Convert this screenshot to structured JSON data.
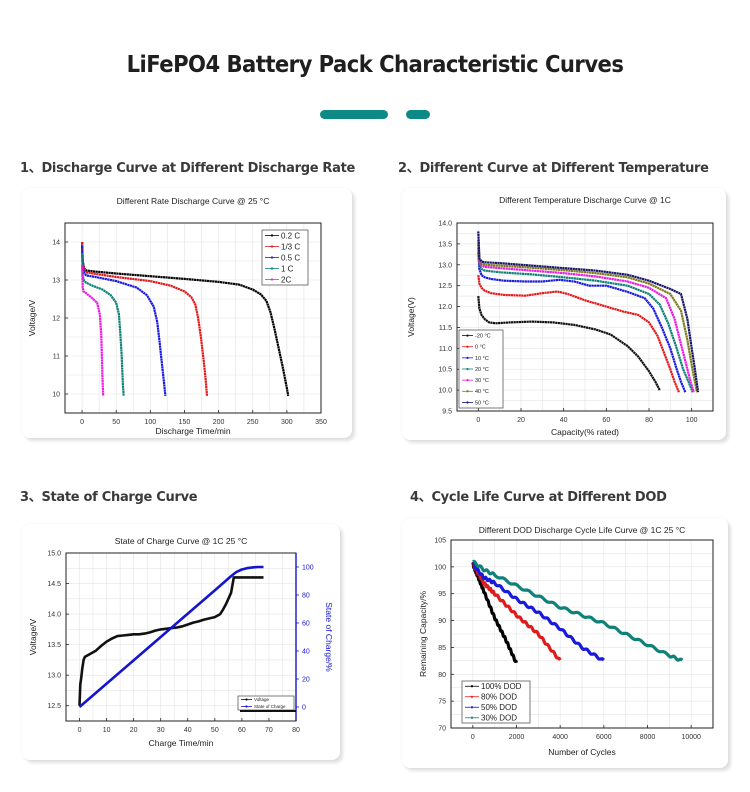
{
  "page": {
    "title": "LiFePO4 Battery Pack Characteristic Curves",
    "accent_color": "#0e8a86"
  },
  "sections": [
    {
      "label": "1、Discharge Curve at Different Discharge Rate"
    },
    {
      "label": "2、Different Curve at Different Temperature"
    },
    {
      "label": "3、State of Charge Curve"
    },
    {
      "label": "4、Cycle Life Curve at Different DOD"
    }
  ],
  "chart_data": [
    {
      "type": "line",
      "title": "Different Rate Discharge Curve @ 25 °C",
      "xlabel": "Discharge Time/min",
      "ylabel": "Voltage/V",
      "xlim": [
        -25,
        350
      ],
      "ylim": [
        9.5,
        14.5
      ],
      "xticks": [
        0,
        50,
        100,
        150,
        200,
        250,
        300,
        350
      ],
      "yticks": [
        10,
        11,
        12,
        13,
        14
      ],
      "grid": true,
      "legend_position": "top-right",
      "series": [
        {
          "name": "0.2 C",
          "color": "#000000",
          "x": [
            0,
            1,
            3,
            6,
            20,
            50,
            100,
            150,
            200,
            230,
            250,
            262,
            270,
            276,
            282,
            288,
            294,
            300,
            302
          ],
          "y": [
            14.0,
            13.5,
            13.3,
            13.25,
            13.22,
            13.17,
            13.1,
            13.03,
            12.95,
            12.88,
            12.75,
            12.62,
            12.45,
            12.15,
            11.7,
            11.2,
            10.7,
            10.15,
            9.95
          ]
        },
        {
          "name": "1/3 C",
          "color": "#e01b1b",
          "x": [
            0,
            1,
            3,
            6,
            20,
            50,
            100,
            130,
            150,
            160,
            166,
            170,
            174,
            178,
            181,
            183
          ],
          "y": [
            14.0,
            13.45,
            13.25,
            13.2,
            13.16,
            13.08,
            12.97,
            12.85,
            12.7,
            12.55,
            12.35,
            12.0,
            11.5,
            10.9,
            10.4,
            9.95
          ]
        },
        {
          "name": "0.5 C",
          "color": "#1a1adb",
          "x": [
            0,
            1,
            3,
            6,
            20,
            50,
            80,
            95,
            105,
            110,
            114,
            117,
            120,
            122
          ],
          "y": [
            13.9,
            13.35,
            13.18,
            13.12,
            13.08,
            12.97,
            12.8,
            12.6,
            12.3,
            11.9,
            11.3,
            10.8,
            10.3,
            9.95
          ]
        },
        {
          "name": "1 C",
          "color": "#0e8278",
          "x": [
            0,
            1,
            3,
            6,
            15,
            30,
            42,
            50,
            54,
            56,
            58,
            59,
            60,
            61
          ],
          "y": [
            13.7,
            13.1,
            12.98,
            12.93,
            12.85,
            12.75,
            12.6,
            12.4,
            12.1,
            11.6,
            11.0,
            10.6,
            10.2,
            9.95
          ]
        },
        {
          "name": "2C",
          "color": "#e81ee0",
          "x": [
            0,
            1,
            2,
            4,
            8,
            15,
            22,
            26,
            28,
            29,
            30,
            31
          ],
          "y": [
            13.4,
            12.8,
            12.7,
            12.68,
            12.62,
            12.52,
            12.4,
            12.1,
            11.6,
            11.0,
            10.4,
            9.95
          ]
        }
      ]
    },
    {
      "type": "line",
      "title": "Different Temperature Discharge Curve @ 1C",
      "xlabel": "Capacity(% rated)",
      "ylabel": "Voltage(V)",
      "xlim": [
        -10,
        110
      ],
      "ylim": [
        9.5,
        14.0
      ],
      "xticks": [
        0,
        20,
        40,
        60,
        80,
        100
      ],
      "yticks": [
        9.5,
        10.0,
        10.5,
        11.0,
        11.5,
        12.0,
        12.5,
        13.0,
        13.5,
        14.0
      ],
      "grid": true,
      "legend_position": "bottom-left",
      "series": [
        {
          "name": "-20 °C",
          "color": "#111111",
          "x": [
            0,
            0.5,
            1.5,
            3,
            5,
            8,
            15,
            25,
            35,
            45,
            55,
            62,
            70,
            75,
            80,
            83,
            85
          ],
          "y": [
            12.25,
            11.95,
            11.8,
            11.7,
            11.62,
            11.6,
            11.62,
            11.64,
            11.62,
            11.56,
            11.45,
            11.33,
            11.05,
            10.8,
            10.45,
            10.2,
            10.0
          ]
        },
        {
          "name": "0 °C",
          "color": "#e01b1b",
          "x": [
            0,
            0.5,
            1.5,
            3,
            6,
            12,
            22,
            30,
            37,
            42,
            50,
            60,
            68,
            75,
            80,
            84,
            87,
            90,
            92,
            94
          ],
          "y": [
            12.75,
            12.55,
            12.45,
            12.38,
            12.32,
            12.28,
            12.26,
            12.32,
            12.36,
            12.3,
            12.15,
            12.0,
            11.88,
            11.8,
            11.62,
            11.3,
            10.9,
            10.5,
            10.2,
            9.95
          ]
        },
        {
          "name": "10 °C",
          "color": "#1a1adb",
          "x": [
            0,
            0.5,
            1.5,
            3,
            6,
            12,
            22,
            30,
            38,
            45,
            52,
            60,
            70,
            78,
            82,
            86,
            90,
            93,
            95,
            97
          ],
          "y": [
            13.3,
            12.9,
            12.75,
            12.7,
            12.66,
            12.62,
            12.6,
            12.6,
            12.64,
            12.6,
            12.5,
            12.5,
            12.35,
            12.2,
            11.95,
            11.5,
            11.0,
            10.5,
            10.2,
            9.95
          ]
        },
        {
          "name": "20 °C",
          "color": "#0e8278",
          "x": [
            0,
            0.5,
            1.5,
            3,
            10,
            25,
            40,
            55,
            70,
            80,
            85,
            89,
            93,
            96,
            98.5,
            100.5
          ],
          "y": [
            13.4,
            13.0,
            12.9,
            12.86,
            12.82,
            12.77,
            12.7,
            12.62,
            12.5,
            12.3,
            12.05,
            11.6,
            11.0,
            10.5,
            10.2,
            9.95
          ]
        },
        {
          "name": "30 °C",
          "color": "#e81ee0",
          "x": [
            0,
            0.5,
            1.5,
            3,
            10,
            25,
            40,
            55,
            70,
            80,
            88,
            92,
            95,
            97.5,
            99.5,
            101
          ],
          "y": [
            13.5,
            13.05,
            12.98,
            12.95,
            12.92,
            12.86,
            12.8,
            12.72,
            12.6,
            12.45,
            12.2,
            11.7,
            11.1,
            10.6,
            10.2,
            9.95
          ]
        },
        {
          "name": "40 °C",
          "color": "#7d7a1a",
          "x": [
            0,
            0.5,
            1.5,
            3,
            10,
            25,
            40,
            55,
            70,
            80,
            90,
            95,
            98,
            100,
            101.5,
            102.5
          ],
          "y": [
            13.6,
            13.1,
            13.03,
            13.0,
            12.98,
            12.93,
            12.87,
            12.8,
            12.7,
            12.55,
            12.3,
            11.9,
            11.2,
            10.6,
            10.2,
            9.95
          ]
        },
        {
          "name": "50 °C",
          "color": "#17176b",
          "x": [
            0,
            0.5,
            1.5,
            3,
            10,
            25,
            40,
            55,
            70,
            80,
            90,
            95,
            98,
            100,
            101.5,
            103
          ],
          "y": [
            13.8,
            13.15,
            13.08,
            13.06,
            13.04,
            12.98,
            12.92,
            12.86,
            12.76,
            12.62,
            12.42,
            12.3,
            11.7,
            11.0,
            10.5,
            9.95
          ]
        }
      ]
    },
    {
      "type": "line",
      "title": "State of Charge Curve @ 1C  25 °C",
      "xlabel": "Charge Time/min",
      "ylabel": "Voltage/V",
      "y2label": "State of Charge/%",
      "xlim": [
        -5,
        80
      ],
      "ylim": [
        12.25,
        15.0
      ],
      "y2lim": [
        -10,
        110
      ],
      "xticks": [
        0,
        10,
        20,
        30,
        40,
        50,
        60,
        70,
        80
      ],
      "yticks": [
        12.5,
        13.0,
        13.5,
        14.0,
        14.5,
        15.0
      ],
      "y2ticks": [
        0,
        20,
        40,
        60,
        80,
        100
      ],
      "grid": true,
      "legend_position": "bottom-right",
      "series": [
        {
          "name": "Voltage",
          "color": "#111111",
          "axis": "left",
          "x": [
            0,
            0.3,
            0.6,
            1,
            1.5,
            2,
            4,
            6,
            8,
            10,
            12,
            14,
            16,
            18,
            20,
            22,
            24,
            26,
            28,
            30,
            32,
            34,
            36,
            38,
            40,
            42,
            44,
            46,
            48,
            50,
            52,
            53,
            54,
            55,
            56,
            57,
            57.5,
            60,
            65,
            68
          ],
          "y": [
            12.5,
            12.85,
            12.95,
            13.1,
            13.25,
            13.3,
            13.35,
            13.4,
            13.48,
            13.55,
            13.6,
            13.64,
            13.65,
            13.66,
            13.67,
            13.67,
            13.68,
            13.7,
            13.73,
            13.75,
            13.76,
            13.77,
            13.78,
            13.8,
            13.83,
            13.86,
            13.88,
            13.91,
            13.93,
            13.95,
            14.0,
            14.07,
            14.15,
            14.25,
            14.35,
            14.6,
            14.6,
            14.6,
            14.6,
            14.6
          ]
        },
        {
          "name": "State of Charge",
          "color": "#1515d0",
          "axis": "right",
          "x": [
            0,
            10,
            20,
            30,
            40,
            50,
            56,
            58,
            60,
            62,
            64,
            66,
            68
          ],
          "y": [
            0,
            16.7,
            33.3,
            50,
            66.7,
            83.3,
            93.5,
            96.5,
            98.2,
            99.2,
            99.7,
            100,
            100
          ]
        }
      ]
    },
    {
      "type": "scatter",
      "title": "Different DOD Discharge Cycle Life Curve @ 1C 25 °C",
      "xlabel": "Number of Cycles",
      "ylabel": "Remaining Capacity/%",
      "xlim": [
        -1000,
        11000
      ],
      "ylim": [
        70,
        105
      ],
      "xticks": [
        0,
        2000,
        4000,
        6000,
        8000,
        10000
      ],
      "yticks": [
        70,
        75,
        80,
        85,
        90,
        95,
        100,
        105
      ],
      "grid": true,
      "legend_position": "bottom-left",
      "series": [
        {
          "name": "100% DOD",
          "color": "#000000",
          "x": [
            0,
            200,
            500,
            1000,
            1500,
            2000
          ],
          "y": [
            100.5,
            98.5,
            95.5,
            90.5,
            86.5,
            82.0
          ]
        },
        {
          "name": "80% DOD",
          "color": "#e01b1b",
          "x": [
            0,
            500,
            1000,
            2000,
            3000,
            4000
          ],
          "y": [
            100.5,
            97.0,
            95.0,
            91.0,
            87.5,
            82.5
          ]
        },
        {
          "name": "50% DOD",
          "color": "#1a1adb",
          "x": [
            0,
            500,
            1000,
            2000,
            3000,
            4000,
            5000,
            6000
          ],
          "y": [
            100.5,
            98.0,
            97.0,
            94.0,
            91.5,
            88.5,
            85.0,
            82.5
          ]
        },
        {
          "name": "30% DOD",
          "color": "#0e8278",
          "x": [
            0,
            500,
            1000,
            2000,
            3000,
            4000,
            5000,
            6000,
            7000,
            8000,
            9000,
            9600
          ],
          "y": [
            101.0,
            99.5,
            98.5,
            96.5,
            94.5,
            92.5,
            91.0,
            89.5,
            87.5,
            85.5,
            83.5,
            82.5
          ]
        }
      ]
    }
  ]
}
